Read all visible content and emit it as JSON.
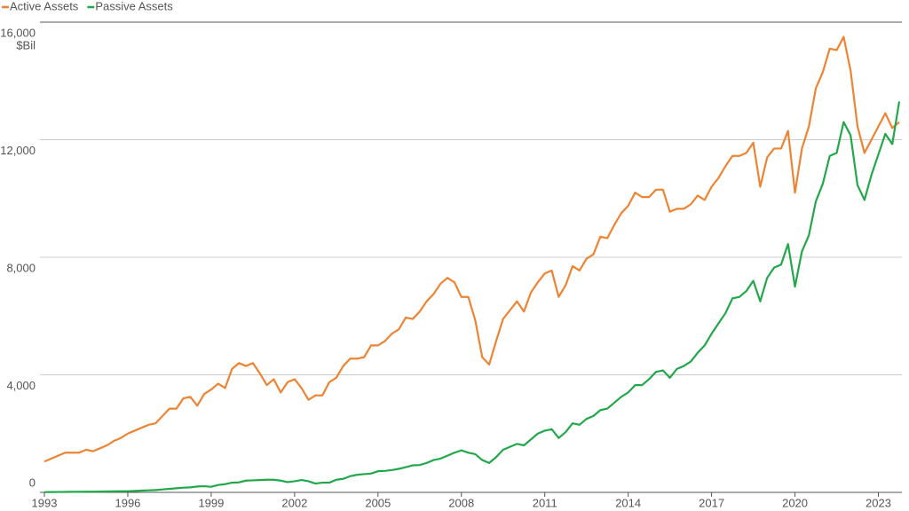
{
  "chart_data": {
    "type": "line",
    "y_label": "$Bil",
    "x": [
      1993,
      1993.25,
      1993.5,
      1993.75,
      1994,
      1994.25,
      1994.5,
      1994.75,
      1995,
      1995.25,
      1995.5,
      1995.75,
      1996,
      1996.25,
      1996.5,
      1996.75,
      1997,
      1997.25,
      1997.5,
      1997.75,
      1998,
      1998.25,
      1998.5,
      1998.75,
      1999,
      1999.25,
      1999.5,
      1999.75,
      2000,
      2000.25,
      2000.5,
      2000.75,
      2001,
      2001.25,
      2001.5,
      2001.75,
      2002,
      2002.25,
      2002.5,
      2002.75,
      2003,
      2003.25,
      2003.5,
      2003.75,
      2004,
      2004.25,
      2004.5,
      2004.75,
      2005,
      2005.25,
      2005.5,
      2005.75,
      2006,
      2006.25,
      2006.5,
      2006.75,
      2007,
      2007.25,
      2007.5,
      2007.75,
      2008,
      2008.25,
      2008.5,
      2008.75,
      2009,
      2009.25,
      2009.5,
      2009.75,
      2010,
      2010.25,
      2010.5,
      2010.75,
      2011,
      2011.25,
      2011.5,
      2011.75,
      2012,
      2012.25,
      2012.5,
      2012.75,
      2013,
      2013.25,
      2013.5,
      2013.75,
      2014,
      2014.25,
      2014.5,
      2014.75,
      2015,
      2015.25,
      2015.5,
      2015.75,
      2016,
      2016.25,
      2016.5,
      2016.75,
      2017,
      2017.25,
      2017.5,
      2017.75,
      2018,
      2018.25,
      2018.5,
      2018.75,
      2019,
      2019.25,
      2019.5,
      2019.75,
      2020,
      2020.25,
      2020.5,
      2020.75,
      2021,
      2021.25,
      2021.5,
      2021.75,
      2022,
      2022.25,
      2022.5,
      2022.75,
      2023,
      2023.25,
      2023.5,
      2023.75
    ],
    "series": [
      {
        "name": "Active Assets",
        "color": "#ed8433",
        "values": [
          1050,
          1150,
          1250,
          1350,
          1350,
          1350,
          1450,
          1400,
          1500,
          1600,
          1750,
          1850,
          2000,
          2100,
          2200,
          2300,
          2350,
          2600,
          2850,
          2850,
          3200,
          3250,
          2950,
          3350,
          3500,
          3700,
          3550,
          4200,
          4400,
          4300,
          4400,
          4050,
          3650,
          3850,
          3400,
          3750,
          3850,
          3550,
          3150,
          3300,
          3300,
          3750,
          3900,
          4300,
          4550,
          4550,
          4600,
          5000,
          5000,
          5150,
          5400,
          5550,
          5950,
          5900,
          6150,
          6500,
          6750,
          7100,
          7300,
          7150,
          6650,
          6650,
          5850,
          4600,
          4350,
          5150,
          5900,
          6200,
          6500,
          6150,
          6800,
          7150,
          7450,
          7550,
          6650,
          7050,
          7700,
          7550,
          7950,
          8100,
          8700,
          8650,
          9100,
          9500,
          9750,
          10200,
          10050,
          10050,
          10300,
          10300,
          9550,
          9650,
          9650,
          9800,
          10100,
          9950,
          10400,
          10700,
          11100,
          11450,
          11450,
          11550,
          11900,
          10400,
          11400,
          11700,
          11700,
          12300,
          10200,
          11700,
          12450,
          13750,
          14300,
          15100,
          15050,
          15500,
          14350,
          12450,
          11550,
          12000,
          12450,
          12900,
          12400,
          12600
        ]
      },
      {
        "name": "Passive Assets",
        "color": "#22a84a",
        "values": [
          10,
          12,
          14,
          16,
          18,
          20,
          22,
          24,
          26,
          30,
          35,
          40,
          40,
          50,
          60,
          70,
          80,
          100,
          120,
          140,
          160,
          170,
          200,
          210,
          190,
          250,
          280,
          330,
          340,
          400,
          410,
          420,
          430,
          430,
          400,
          350,
          380,
          420,
          380,
          300,
          330,
          330,
          430,
          460,
          550,
          600,
          620,
          640,
          720,
          730,
          760,
          800,
          860,
          920,
          930,
          1000,
          1100,
          1150,
          1250,
          1350,
          1430,
          1350,
          1300,
          1100,
          1000,
          1200,
          1450,
          1550,
          1650,
          1600,
          1800,
          2000,
          2100,
          2150,
          1850,
          2050,
          2350,
          2300,
          2500,
          2600,
          2800,
          2850,
          3050,
          3250,
          3400,
          3650,
          3650,
          3850,
          4100,
          4150,
          3900,
          4200,
          4300,
          4450,
          4750,
          5000,
          5400,
          5750,
          6100,
          6600,
          6650,
          6850,
          7200,
          6500,
          7300,
          7650,
          7750,
          8450,
          7000,
          8200,
          8750,
          9900,
          10500,
          11450,
          11550,
          12600,
          12150,
          10450,
          9950,
          10800,
          11500,
          12200,
          11850,
          13300
        ]
      }
    ],
    "xlim": [
      1993,
      2023.75
    ],
    "xticks": [
      1993,
      1996,
      1999,
      2002,
      2005,
      2008,
      2011,
      2014,
      2017,
      2020,
      2023
    ],
    "ylim": [
      0,
      16000
    ],
    "yticks": [
      0,
      {
        "value": 4000,
        "label": "4,000"
      },
      {
        "value": 8000,
        "label": "8,000"
      },
      {
        "value": 12000,
        "label": "12,000"
      },
      {
        "value": 16000,
        "label": "16,000"
      }
    ],
    "grid": true,
    "legend": "top-left"
  }
}
